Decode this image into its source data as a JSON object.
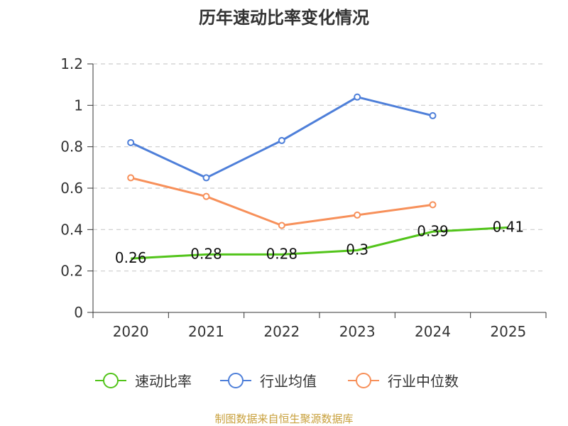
{
  "chart_data": {
    "type": "line",
    "title": "历年速动比率变化情况",
    "categories": [
      "2020",
      "2021",
      "2022",
      "2023",
      "2024",
      "2025"
    ],
    "yticks": [
      "0",
      "0.2",
      "0.4",
      "0.6",
      "0.8",
      "1",
      "1.2"
    ],
    "ylim": [
      0,
      1.2
    ],
    "grid": true,
    "legend_position": "bottom",
    "series": [
      {
        "name": "速动比率",
        "color": "#52c41a",
        "values": [
          0.26,
          0.28,
          0.28,
          0.3,
          0.39,
          0.41
        ],
        "labels": [
          "0.26",
          "0.28",
          "0.28",
          "0.3",
          "0.39",
          "0.41"
        ],
        "show_labels": true,
        "show_markers": false
      },
      {
        "name": "行业均值",
        "color": "#4e7fd9",
        "values": [
          0.82,
          0.65,
          0.83,
          1.04,
          0.95,
          null
        ],
        "show_labels": false,
        "show_markers": true
      },
      {
        "name": "行业中位数",
        "color": "#f7905a",
        "values": [
          0.65,
          0.56,
          0.42,
          0.47,
          0.52,
          null
        ],
        "show_labels": false,
        "show_markers": true
      }
    ]
  },
  "source_note": "制图数据来自恒生聚源数据库",
  "colors": {
    "axis": "#333333",
    "grid": "#cccccc",
    "source": "#c8a03c"
  }
}
